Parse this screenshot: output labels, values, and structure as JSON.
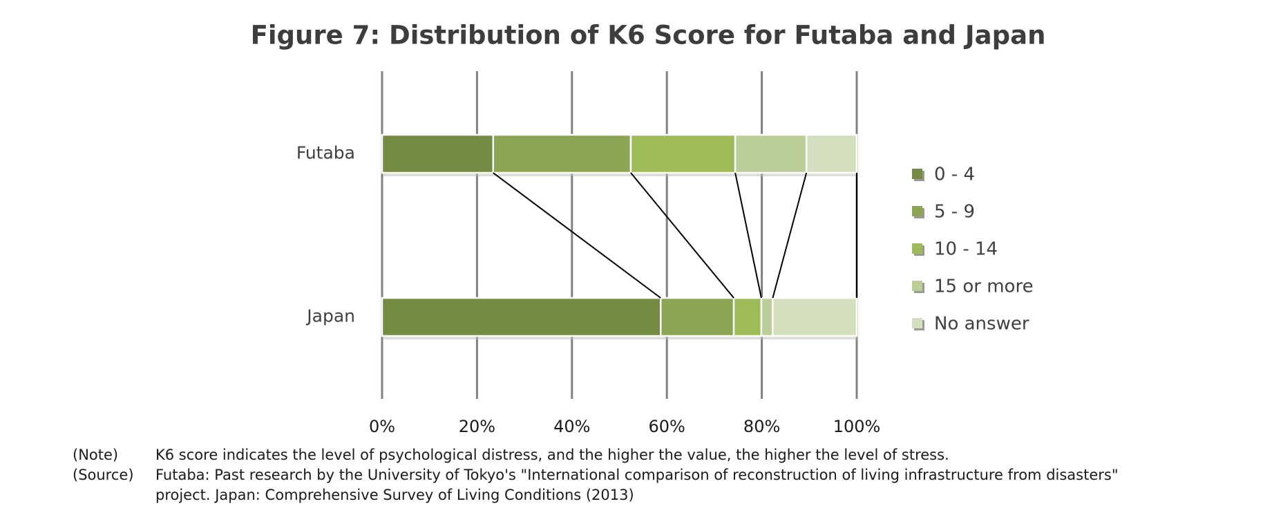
{
  "chart_data": {
    "type": "stacked-bar-horizontal",
    "title": "Figure 7: Distribution of K6 Score for Futaba and Japan",
    "categories": [
      "Futaba",
      "Japan"
    ],
    "series": [
      {
        "name": "0 - 4",
        "color": "#748b44",
        "values": [
          23.4,
          58.7
        ]
      },
      {
        "name": "5 - 9",
        "color": "#8aa653",
        "values": [
          29.0,
          15.4
        ]
      },
      {
        "name": "10 - 14",
        "color": "#9dbb58",
        "values": [
          22.0,
          5.8
        ]
      },
      {
        "name": "15 or more",
        "color": "#bacf97",
        "values": [
          15.0,
          2.4
        ]
      },
      {
        "name": "No answer",
        "color": "#d3dfbf",
        "values": [
          10.6,
          17.7
        ]
      }
    ],
    "xlim": [
      0,
      100
    ],
    "xticks": [
      {
        "value": 0,
        "label": "0%"
      },
      {
        "value": 20,
        "label": "20%"
      },
      {
        "value": 40,
        "label": "40%"
      },
      {
        "value": 60,
        "label": "60%"
      },
      {
        "value": 80,
        "label": "80%"
      },
      {
        "value": 100,
        "label": "100%"
      }
    ],
    "grid": true,
    "legend": "right",
    "notes": [
      {
        "label": "(Note)",
        "lines": [
          "K6 score indicates the level of psychological distress, and the higher the value, the higher the level of stress."
        ]
      },
      {
        "label": "(Source)",
        "lines": [
          "Futaba: Past research by the University of Tokyo's \"International comparison of reconstruction of living infrastructure from disasters\"",
          "project. Japan: Comprehensive Survey of Living Conditions (2013)"
        ]
      }
    ]
  }
}
